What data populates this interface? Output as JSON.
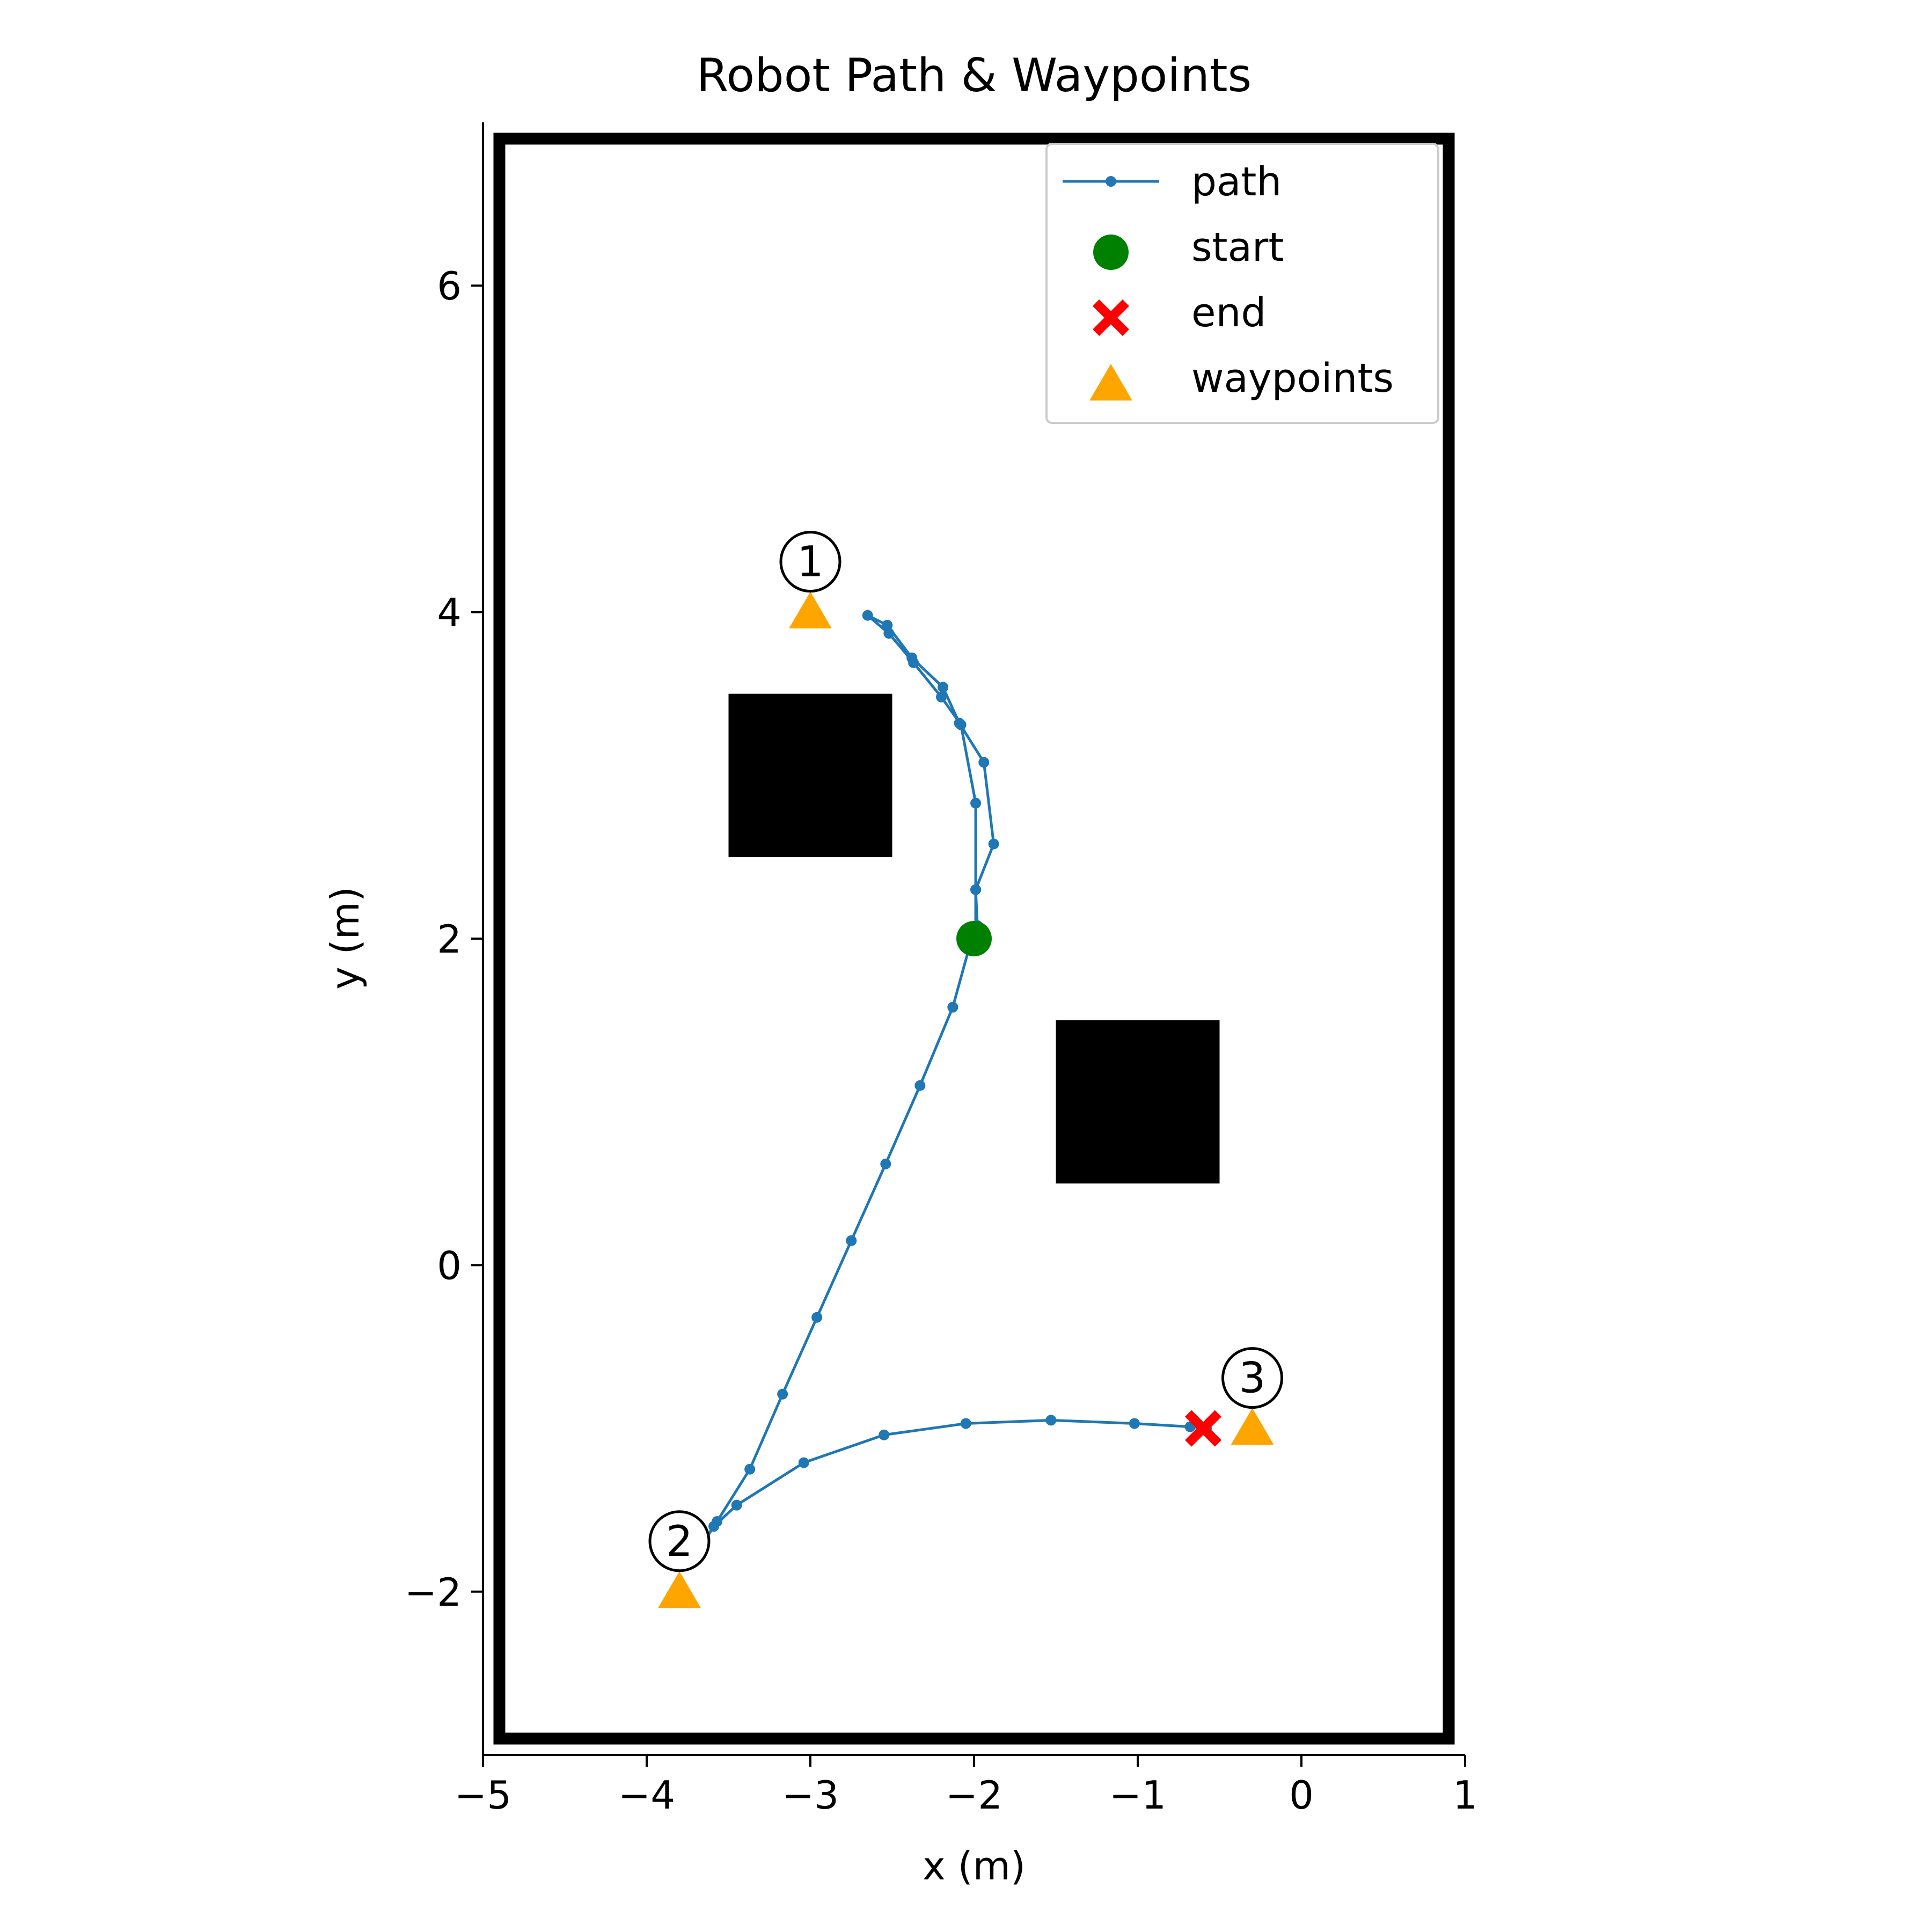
{
  "chart_data": {
    "type": "scatter",
    "title": "Robot Path & Waypoints",
    "xlabel": "x (m)",
    "ylabel": "y (m)",
    "xlim": [
      -5,
      1
    ],
    "ylim": [
      -3,
      7
    ],
    "xticks": [
      {
        "value": -5,
        "label": "−5"
      },
      {
        "value": -4,
        "label": "−4"
      },
      {
        "value": -3,
        "label": "−3"
      },
      {
        "value": -2,
        "label": "−2"
      },
      {
        "value": -1,
        "label": "−1"
      },
      {
        "value": 0,
        "label": "0"
      },
      {
        "value": 1,
        "label": "1"
      }
    ],
    "yticks": [
      {
        "value": -2,
        "label": "−2"
      },
      {
        "value": 0,
        "label": "0"
      },
      {
        "value": 2,
        "label": "2"
      },
      {
        "value": 4,
        "label": "4"
      },
      {
        "value": 6,
        "label": "6"
      }
    ],
    "grid": false,
    "legend_position": "upper right",
    "legend": [
      {
        "label": "path",
        "marker": "line-dot",
        "color": "#1f77b4"
      },
      {
        "label": "start",
        "marker": "circle",
        "color": "#008000"
      },
      {
        "label": "end",
        "marker": "x-filled",
        "color": "#ff0000"
      },
      {
        "label": "waypoints",
        "marker": "triangle",
        "color": "#ffa500"
      }
    ],
    "boundary": {
      "x": [
        -4.9,
        0.9
      ],
      "y": [
        -2.9,
        6.9
      ],
      "color": "#000000"
    },
    "obstacles": [
      {
        "x": [
          -3.5,
          -2.5
        ],
        "y": [
          2.5,
          3.5
        ],
        "color": "#000000"
      },
      {
        "x": [
          -1.5,
          -0.5
        ],
        "y": [
          0.5,
          1.5
        ],
        "color": "#000000"
      }
    ],
    "series": [
      {
        "name": "path",
        "color": "#1f77b4",
        "x": [
          -2.0,
          -1.98,
          -1.99,
          -1.88,
          -1.94,
          -2.09,
          -2.19,
          -2.38,
          -2.53,
          -2.65,
          -2.52,
          -2.37,
          -2.2,
          -2.08,
          -1.99,
          -1.99,
          -1.99,
          -2.02,
          -2.13,
          -2.33,
          -2.54,
          -2.75,
          -2.96,
          -3.17,
          -3.37,
          -3.57,
          -3.68,
          -3.59,
          -3.45,
          -3.04,
          -2.55,
          -2.05,
          -1.53,
          -1.02,
          -0.68,
          -0.58
        ],
        "y": [
          2.0,
          2.08,
          2.3,
          2.58,
          3.08,
          3.32,
          3.54,
          3.72,
          3.92,
          3.98,
          3.87,
          3.69,
          3.48,
          3.31,
          2.83,
          2.3,
          2.05,
          1.98,
          1.58,
          1.1,
          0.62,
          0.15,
          -0.32,
          -0.79,
          -1.25,
          -1.57,
          -1.74,
          -1.6,
          -1.47,
          -1.21,
          -1.04,
          -0.97,
          -0.95,
          -0.97,
          -0.99,
          -1.0
        ]
      }
    ],
    "start": {
      "x": -2.0,
      "y": 2.0,
      "color": "#008000"
    },
    "end": {
      "x": -0.6,
      "y": -1.0,
      "color": "#ff0000"
    },
    "waypoints": [
      {
        "x": -3.0,
        "y": 4.0,
        "label": "1"
      },
      {
        "x": -3.8,
        "y": -2.0,
        "label": "2"
      },
      {
        "x": -0.3,
        "y": -1.0,
        "label": "3"
      }
    ],
    "waypoint_color": "#ffa500"
  }
}
